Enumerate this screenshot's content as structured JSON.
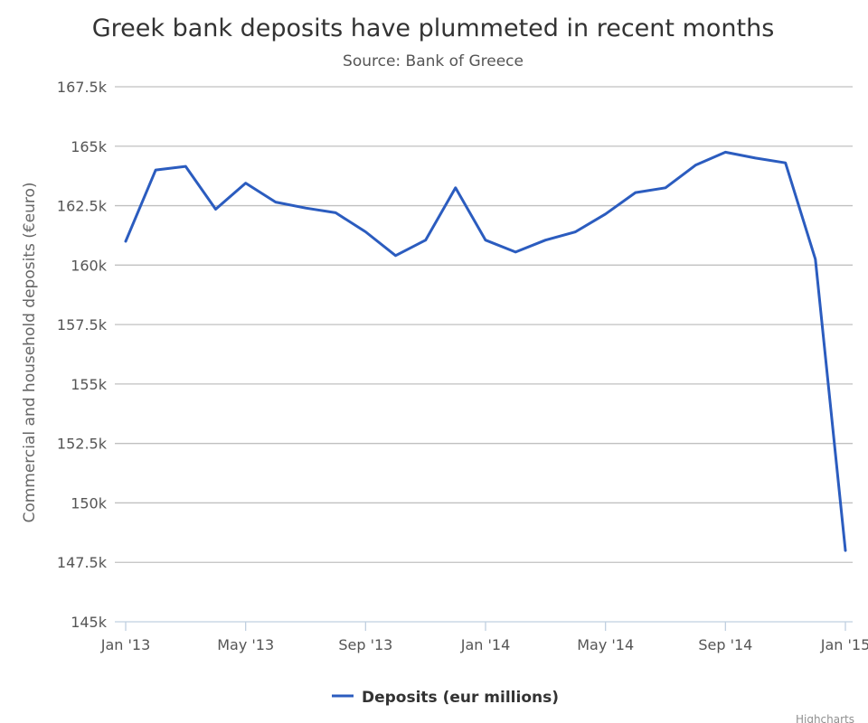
{
  "chart_data": {
    "type": "line",
    "title": "Greek bank deposits have plummeted in recent months",
    "subtitle": "Source: Bank of Greece",
    "ylabel": "Commercial and household deposits (€euro)",
    "xlabel": "",
    "ylim": [
      145000,
      167500
    ],
    "y_ticks": [
      {
        "value": 145000,
        "label": "145k"
      },
      {
        "value": 147500,
        "label": "147.5k"
      },
      {
        "value": 150000,
        "label": "150k"
      },
      {
        "value": 152500,
        "label": "152.5k"
      },
      {
        "value": 155000,
        "label": "155k"
      },
      {
        "value": 157500,
        "label": "157.5k"
      },
      {
        "value": 160000,
        "label": "160k"
      },
      {
        "value": 162500,
        "label": "162.5k"
      },
      {
        "value": 165000,
        "label": "165k"
      },
      {
        "value": 167500,
        "label": "167.5k"
      }
    ],
    "x": [
      "2013-01",
      "2013-02",
      "2013-03",
      "2013-04",
      "2013-05",
      "2013-06",
      "2013-07",
      "2013-08",
      "2013-09",
      "2013-10",
      "2013-11",
      "2013-12",
      "2014-01",
      "2014-02",
      "2014-03",
      "2014-04",
      "2014-05",
      "2014-06",
      "2014-07",
      "2014-08",
      "2014-09",
      "2014-10",
      "2014-11",
      "2014-12",
      "2015-01"
    ],
    "x_ticks": [
      {
        "value": "2013-01",
        "label": "Jan '13"
      },
      {
        "value": "2013-05",
        "label": "May '13"
      },
      {
        "value": "2013-09",
        "label": "Sep '13"
      },
      {
        "value": "2014-01",
        "label": "Jan '14"
      },
      {
        "value": "2014-05",
        "label": "May '14"
      },
      {
        "value": "2014-09",
        "label": "Sep '14"
      },
      {
        "value": "2015-01",
        "label": "Jan '15"
      }
    ],
    "series": [
      {
        "name": "Deposits (eur millions)",
        "color": "#2b5cbf",
        "values": [
          161000,
          164000,
          164150,
          162350,
          163450,
          162650,
          162400,
          162200,
          161400,
          160400,
          161050,
          163250,
          161050,
          160550,
          161050,
          161400,
          162150,
          163050,
          163250,
          164200,
          164750,
          164500,
          164300,
          160250,
          148000
        ]
      }
    ],
    "grid": true,
    "legend_position": "bottom-center"
  },
  "credits": "Highcharts"
}
